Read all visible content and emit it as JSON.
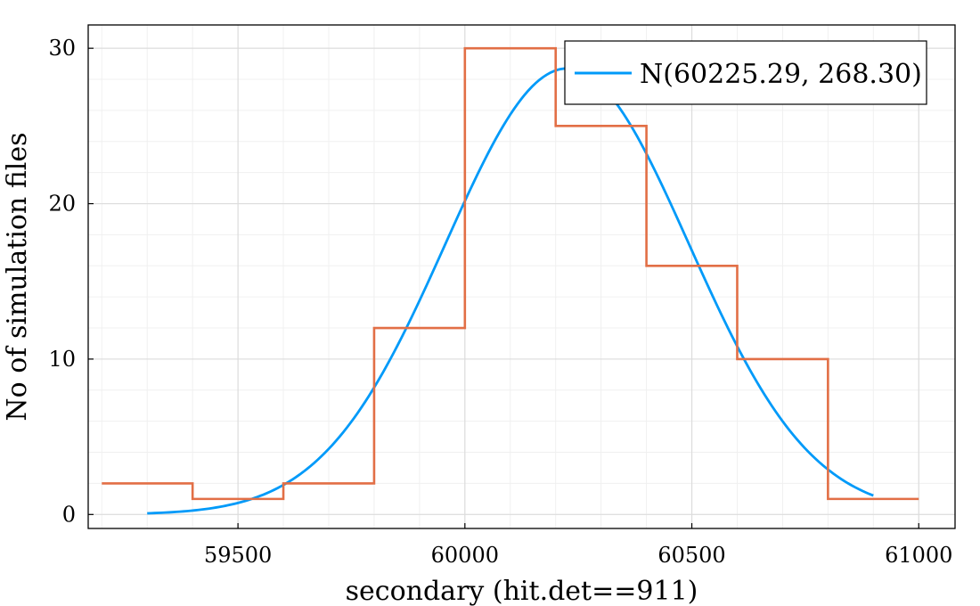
{
  "chart_data": {
    "type": "line",
    "xlabel": "secondary (hit.det==911)",
    "ylabel": "No of simulation files",
    "xlim": [
      59170,
      61080
    ],
    "ylim": [
      -0.9,
      31.5
    ],
    "x_ticks": [
      59500,
      60000,
      60500,
      61000
    ],
    "y_ticks": [
      0,
      10,
      20,
      30
    ],
    "x_minor_step": 100,
    "y_minor_step": 2,
    "grid": true,
    "legend_position": "top-right",
    "series": [
      {
        "name": "N(60225.29, 268.30)",
        "kind": "normal-curve",
        "color": "#009af9",
        "mean": 60225.29,
        "std": 268.3,
        "peak": 28.7,
        "x_range": [
          59300,
          60900
        ]
      },
      {
        "kind": "histogram-step",
        "color": "#e26f46",
        "bin_edges": [
          59200,
          59400,
          59600,
          59800,
          60000,
          60200,
          60400,
          60600,
          60800,
          61000
        ],
        "counts": [
          2,
          1,
          2,
          12,
          30,
          25,
          16,
          10,
          1
        ]
      }
    ]
  }
}
